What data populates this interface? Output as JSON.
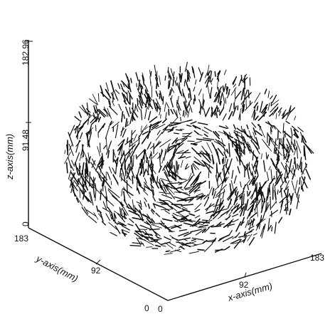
{
  "chart_data": {
    "type": "scatter",
    "subtype": "3d-vector-field",
    "xlabel": "x-axis(mm)",
    "ylabel": "y-axis(mm)",
    "zlabel": "z-axis(mm)",
    "x_ticks": [
      "0",
      "92",
      "183"
    ],
    "y_ticks": [
      "0",
      "92",
      "183"
    ],
    "z_ticks": [
      "0",
      "91.48",
      "182.96"
    ],
    "xlim": [
      0,
      183
    ],
    "ylim": [
      0,
      183
    ],
    "zlim": [
      0,
      182.96
    ],
    "grid": false,
    "legend": "none",
    "field": {
      "description": "bowl-shaped distribution of short displacement vectors",
      "vector_count": 1400,
      "color": "#111111"
    }
  }
}
